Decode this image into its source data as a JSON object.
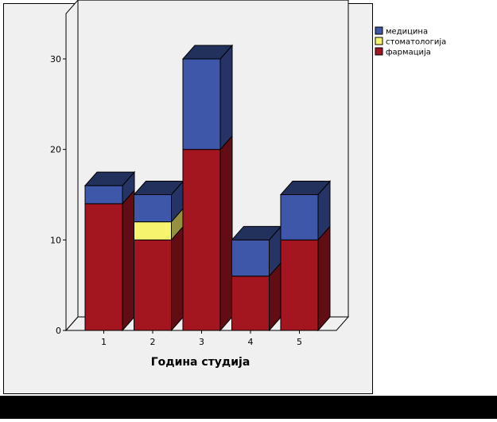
{
  "chart_data": {
    "type": "bar",
    "stacked": true,
    "three_d": true,
    "categories": [
      "1",
      "2",
      "3",
      "4",
      "5"
    ],
    "series": [
      {
        "name": "фармација",
        "color": "#a3161f",
        "values": [
          14,
          10,
          20,
          6,
          10
        ]
      },
      {
        "name": "стоматологија",
        "color": "#f6f46e",
        "values": [
          0,
          2,
          0,
          0,
          0
        ]
      },
      {
        "name": "медицина",
        "color": "#3e57a8",
        "values": [
          2,
          3,
          10,
          4,
          5
        ]
      }
    ],
    "legend_order": [
      "медицина",
      "стоматологија",
      "фармација"
    ],
    "xlabel": "Година студија",
    "ylabel": "",
    "ylim": [
      0,
      35
    ],
    "yticks": [
      0,
      10,
      20,
      30
    ],
    "legend_position": "top-right",
    "grid": false
  }
}
